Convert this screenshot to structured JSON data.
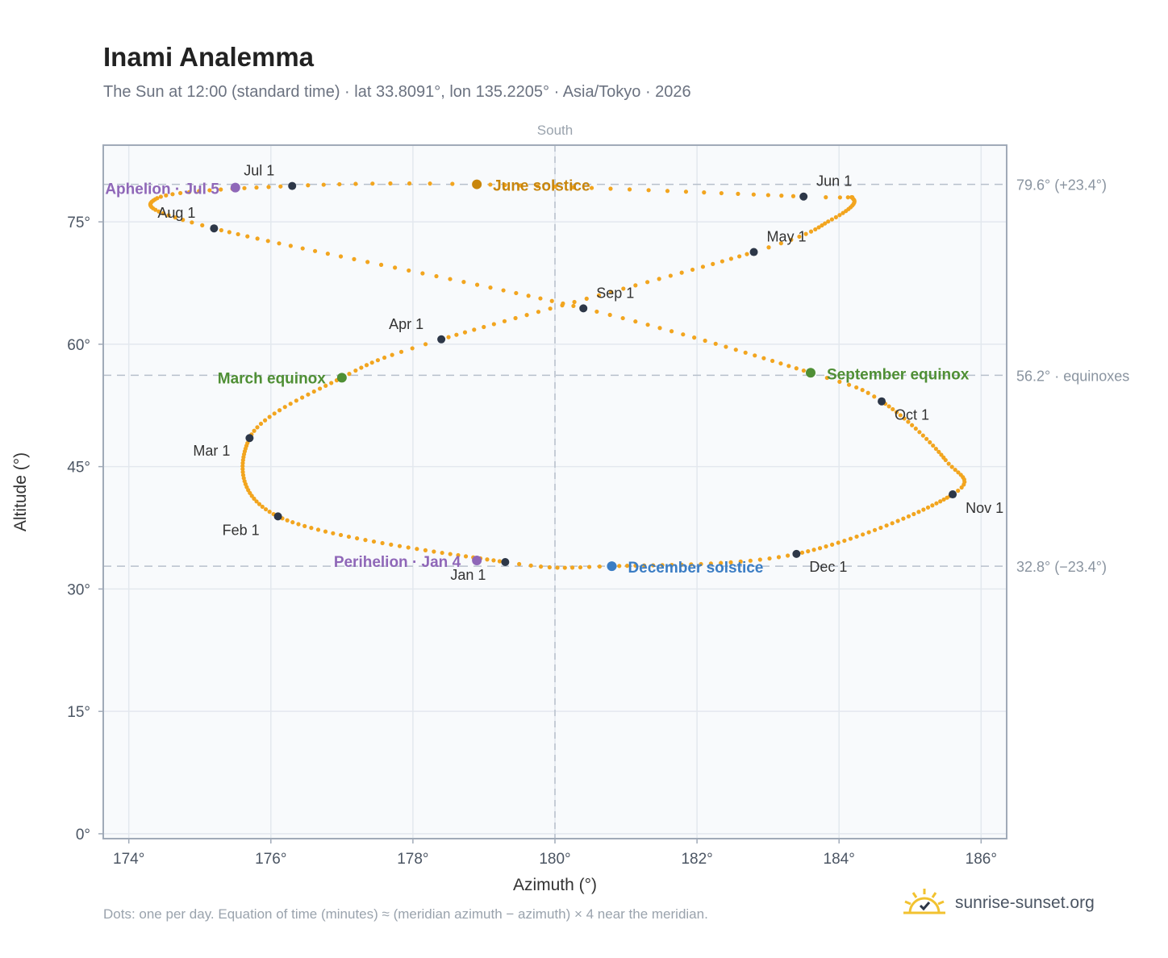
{
  "header": {
    "title": "Inami Analemma",
    "subtitle": "The Sun at 12:00 (standard time) · lat 33.8091°, lon 135.2205° · Asia/Tokyo · 2026"
  },
  "footer": {
    "note": "Dots: one per day. Equation of time (minutes) ≈ (meridian azimuth − azimuth) × 4 near the meridian.",
    "brand": "sunrise-sunset.org",
    "brand_icon": "sun-logo-icon"
  },
  "colors": {
    "trace": "#f2a51f",
    "month_marker": "#2d3748",
    "solstice_june": "#c8860d",
    "solstice_december": "#3b7dc4",
    "equinox": "#4f8f35",
    "apsis": "#8f67b8",
    "plot_bg": "#f8fafc",
    "grid": "#e3e8ee",
    "frame": "#a0aab8",
    "reference_line": "#b7c0cc"
  },
  "chart_data": {
    "type": "scatter",
    "title": "Inami Analemma",
    "xlabel": "Azimuth (°)",
    "ylabel": "Altitude (°)",
    "xlim": [
      173.64,
      186.36
    ],
    "ylim": [
      -0.6,
      84.4
    ],
    "x_ticks": [
      174,
      176,
      178,
      180,
      182,
      184,
      186
    ],
    "x_tick_labels": [
      "174°",
      "176°",
      "178°",
      "180°",
      "182°",
      "184°",
      "186°"
    ],
    "y_ticks": [
      0,
      15,
      30,
      45,
      60,
      75
    ],
    "y_tick_labels": [
      "0°",
      "15°",
      "30°",
      "45°",
      "60°",
      "75°"
    ],
    "grid": true,
    "meridian": {
      "azimuth": 180,
      "label": "South"
    },
    "reference_lines": [
      {
        "altitude": 79.6,
        "label": "79.6° (+23.4°)"
      },
      {
        "altitude": 56.2,
        "label": "56.2° · equinoxes"
      },
      {
        "altitude": 32.8,
        "label": "32.8° (−23.4°)"
      }
    ],
    "daily_trace": {
      "name": "Sun position",
      "points_per_year": 365,
      "anchors": [
        {
          "day": 0,
          "az": 179.3,
          "alt": 33.3
        },
        {
          "day": 31,
          "az": 176.1,
          "alt": 38.9
        },
        {
          "day": 59,
          "az": 175.7,
          "alt": 48.5
        },
        {
          "day": 78,
          "az": 177.0,
          "alt": 55.9
        },
        {
          "day": 90,
          "az": 178.4,
          "alt": 60.6
        },
        {
          "day": 120,
          "az": 182.8,
          "alt": 71.3
        },
        {
          "day": 132,
          "az": 183.9,
          "alt": 75.3
        },
        {
          "day": 144,
          "az": 184.2,
          "alt": 77.8
        },
        {
          "day": 151,
          "az": 183.5,
          "alt": 78.1
        },
        {
          "day": 171,
          "az": 178.9,
          "alt": 79.6
        },
        {
          "day": 181,
          "az": 176.3,
          "alt": 79.4
        },
        {
          "day": 195,
          "az": 174.4,
          "alt": 77.9
        },
        {
          "day": 212,
          "az": 175.2,
          "alt": 74.2
        },
        {
          "day": 243,
          "az": 180.4,
          "alt": 64.4
        },
        {
          "day": 265,
          "az": 183.6,
          "alt": 56.5
        },
        {
          "day": 273,
          "az": 184.6,
          "alt": 53.0
        },
        {
          "day": 292,
          "az": 185.5,
          "alt": 45.8
        },
        {
          "day": 304,
          "az": 185.6,
          "alt": 41.6
        },
        {
          "day": 334,
          "az": 183.4,
          "alt": 34.3
        },
        {
          "day": 354,
          "az": 180.8,
          "alt": 32.8
        },
        {
          "day": 365,
          "az": 179.3,
          "alt": 33.3
        }
      ]
    },
    "month_markers": [
      {
        "label": "Jan 1",
        "az": 179.3,
        "alt": 33.3,
        "dx": -68,
        "dy": 22
      },
      {
        "label": "Feb 1",
        "az": 176.1,
        "alt": 38.9,
        "dx": -69,
        "dy": 23
      },
      {
        "label": "Mar 1",
        "az": 175.7,
        "alt": 48.5,
        "dx": -70,
        "dy": 22
      },
      {
        "label": "Apr 1",
        "az": 178.4,
        "alt": 60.6,
        "dx": -65,
        "dy": -13
      },
      {
        "label": "May 1",
        "az": 182.8,
        "alt": 71.3,
        "dx": 16,
        "dy": -13
      },
      {
        "label": "Jun 1",
        "az": 183.5,
        "alt": 78.1,
        "dx": 16,
        "dy": -13
      },
      {
        "label": "Jul 1",
        "az": 176.3,
        "alt": 79.4,
        "dx": -60,
        "dy": -13
      },
      {
        "label": "Aug 1",
        "az": 175.2,
        "alt": 74.2,
        "dx": -70,
        "dy": -13
      },
      {
        "label": "Sep 1",
        "az": 180.4,
        "alt": 64.4,
        "dx": 16,
        "dy": -13
      },
      {
        "label": "Oct 1",
        "az": 184.6,
        "alt": 53.0,
        "dx": 16,
        "dy": 23
      },
      {
        "label": "Nov 1",
        "az": 185.6,
        "alt": 41.6,
        "dx": 16,
        "dy": 23
      },
      {
        "label": "Dec 1",
        "az": 183.4,
        "alt": 34.3,
        "dx": 16,
        "dy": 22
      }
    ],
    "events": [
      {
        "label": "June solstice",
        "az": 178.9,
        "alt": 79.6,
        "color_key": "solstice_june",
        "anchor": "start",
        "dx": 20,
        "dy": 8
      },
      {
        "label": "December solstice",
        "az": 180.8,
        "alt": 32.8,
        "color_key": "solstice_december",
        "anchor": "start",
        "dx": 20,
        "dy": 8
      },
      {
        "label": "March equinox",
        "az": 177.0,
        "alt": 55.9,
        "color_key": "equinox",
        "anchor": "end",
        "dx": -20,
        "dy": 7
      },
      {
        "label": "September equinox",
        "az": 183.6,
        "alt": 56.5,
        "color_key": "equinox",
        "anchor": "start",
        "dx": 20,
        "dy": 8
      },
      {
        "label": "Aphelion · Jul 5",
        "az": 175.5,
        "alt": 79.2,
        "color_key": "apsis",
        "anchor": "end",
        "dx": -20,
        "dy": 8
      },
      {
        "label": "Perihelion · Jan 4",
        "az": 178.9,
        "alt": 33.5,
        "color_key": "apsis",
        "anchor": "end",
        "dx": -20,
        "dy": 8
      }
    ]
  }
}
